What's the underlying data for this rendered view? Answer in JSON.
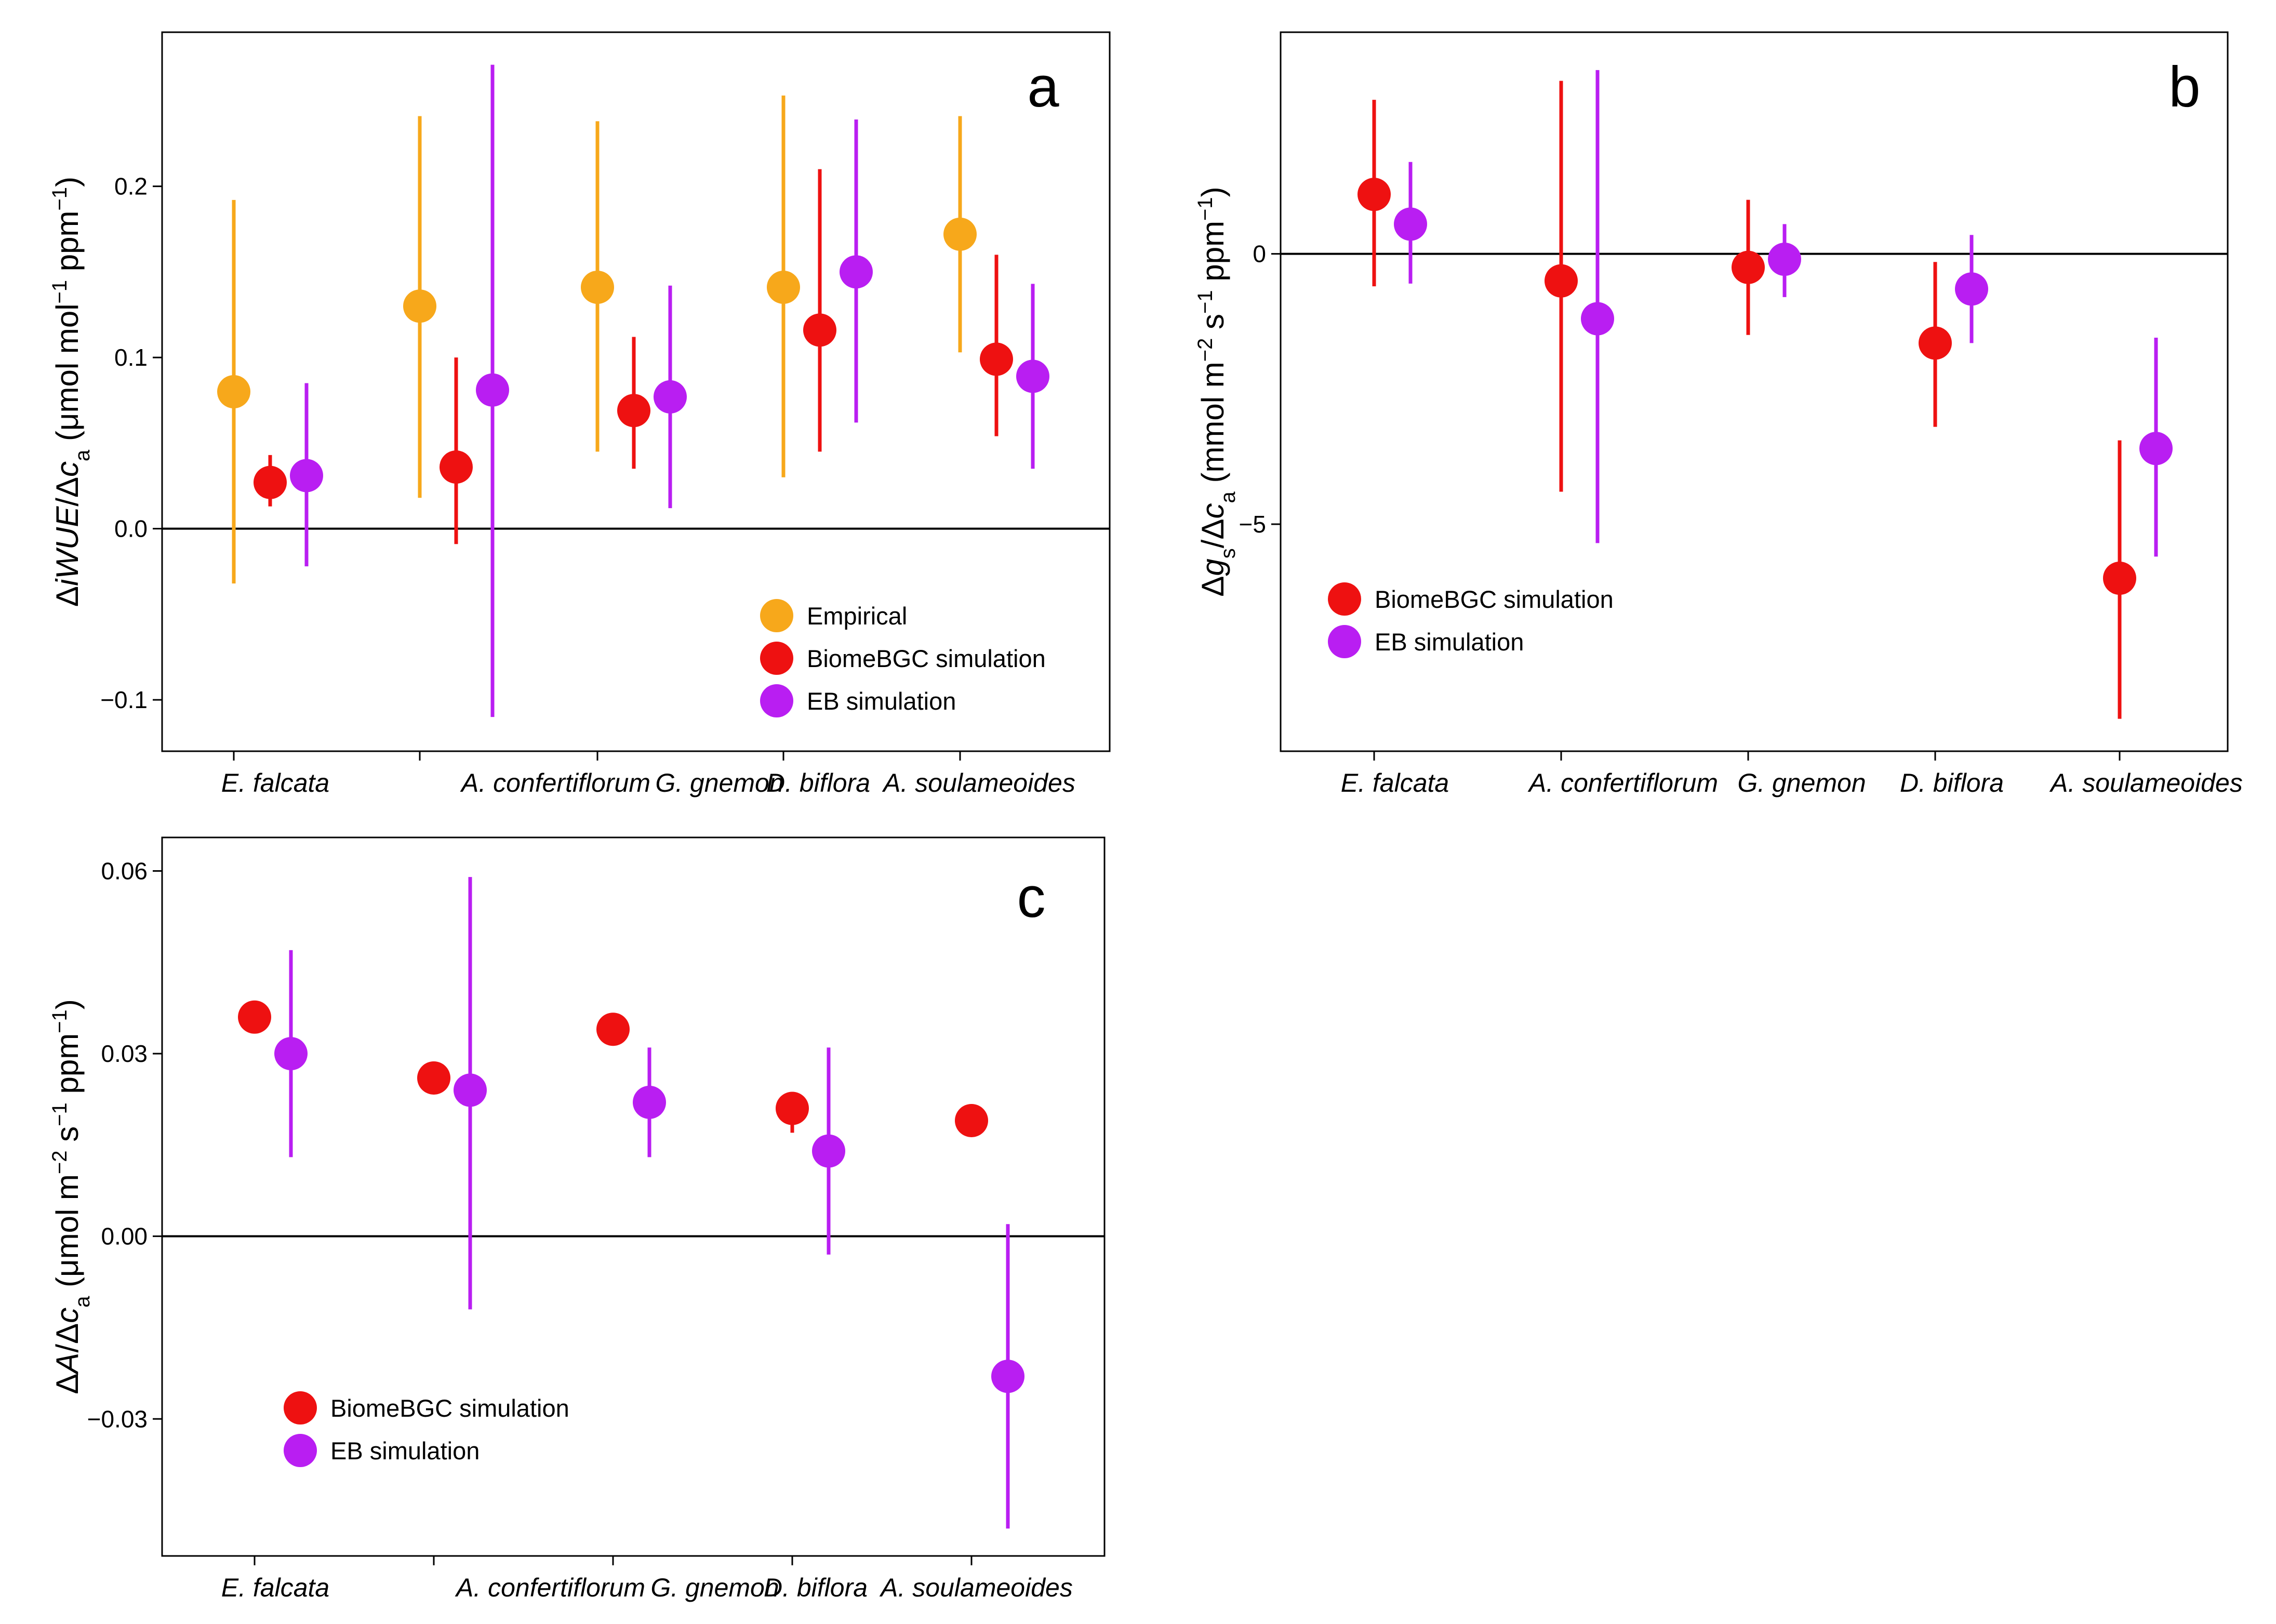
{
  "figure": {
    "panels": [
      {
        "id": "a",
        "letter": "a",
        "ylabel_parts": {
          "delta1": "Δ",
          "i": "i",
          "wue": "WUE",
          "slash": "/Δ",
          "c": "c",
          "sub_a": "a",
          "units_pre": "(μmol mol",
          "exp1": "−1",
          "units_mid": " ppm",
          "exp2": "−1",
          "close": ")"
        }
      },
      {
        "id": "b",
        "letter": "b",
        "ylabel_parts": {
          "delta1": "Δ",
          "g": "g",
          "sub_s": "s",
          "slash": "/Δ",
          "c": "c",
          "sub_a": "a",
          "units_pre": " (mmol m",
          "exp1": "−2",
          "units_s": " s",
          "exp2": "−1",
          "units_mid": " ppm",
          "exp3": "−1",
          "close": ")"
        }
      },
      {
        "id": "c",
        "letter": "c",
        "ylabel_parts": {
          "delta1": "Δ",
          "A": "A",
          "slash": "/Δ",
          "c": "c",
          "sub_a": "a",
          "units_pre": " (μmol m",
          "exp1": "−2",
          "units_s": " s",
          "exp2": "−1",
          "units_mid": " ppm",
          "exp3": "−1",
          "close": ")"
        }
      }
    ]
  },
  "chart_data": [
    {
      "panel": "a",
      "type": "scatter",
      "title": "",
      "xlabel": "",
      "ylabel": "ΔiWUE/Δca (μmol mol−1 ppm−1)",
      "ylim": [
        -0.13,
        0.29
      ],
      "yticks": [
        -0.1,
        0.0,
        0.1,
        0.2
      ],
      "ytick_labels": [
        "−0.1",
        "0.0",
        "0.1",
        "0.2"
      ],
      "hline": 0,
      "categories": [
        "E. falcata",
        "A. confertiflorum",
        "G. gnemon",
        "D. biflora",
        "A. soulameoides"
      ],
      "legend": "bottom-right",
      "series": [
        {
          "name": "Empirical",
          "color": "#F7A81B",
          "values": [
            0.08,
            0.13,
            0.141,
            0.141,
            0.172
          ],
          "lower": [
            -0.032,
            0.018,
            0.045,
            0.03,
            0.103
          ],
          "upper": [
            0.192,
            0.241,
            0.238,
            0.253,
            0.241
          ]
        },
        {
          "name": "BiomeBGC simulation",
          "color": "#EE1111",
          "values": [
            0.027,
            0.036,
            0.069,
            0.116,
            0.099
          ],
          "lower": [
            0.013,
            -0.009,
            0.035,
            0.045,
            0.054
          ],
          "upper": [
            0.043,
            0.1,
            0.112,
            0.21,
            0.16
          ]
        },
        {
          "name": "EB simulation",
          "color": "#B91EF2",
          "values": [
            0.031,
            0.081,
            0.077,
            0.15,
            0.089
          ],
          "lower": [
            -0.022,
            -0.11,
            0.012,
            0.062,
            0.035
          ],
          "upper": [
            0.085,
            0.271,
            0.142,
            0.239,
            0.143
          ]
        }
      ]
    },
    {
      "panel": "b",
      "type": "scatter",
      "title": "",
      "xlabel": "",
      "ylabel": "Δgs/Δca (mmol m−2 s−1 ppm−1)",
      "ylim": [
        -9.2,
        4.1
      ],
      "yticks": [
        -5,
        0
      ],
      "ytick_labels": [
        "−5",
        "0"
      ],
      "hline": 0,
      "categories": [
        "E. falcata",
        "A. confertiflorum",
        "G. gnemon",
        "D. biflora",
        "A. soulameoides"
      ],
      "legend": "bottom-left",
      "series": [
        {
          "name": "BiomeBGC simulation",
          "color": "#EE1111",
          "values": [
            1.1,
            -0.5,
            -0.25,
            -1.65,
            -6.0
          ],
          "lower": [
            -0.6,
            -4.4,
            -1.5,
            -3.2,
            -8.6
          ],
          "upper": [
            2.85,
            3.2,
            1.0,
            -0.15,
            -3.45
          ]
        },
        {
          "name": "EB simulation",
          "color": "#B91EF2",
          "values": [
            0.55,
            -1.2,
            -0.1,
            -0.65,
            -3.6
          ],
          "lower": [
            -0.55,
            -5.35,
            -0.8,
            -1.65,
            -5.6
          ],
          "upper": [
            1.7,
            3.4,
            0.55,
            0.35,
            -1.55
          ]
        }
      ]
    },
    {
      "panel": "c",
      "type": "scatter",
      "title": "",
      "xlabel": "",
      "ylabel": "ΔA/Δca (μmol m−2 s−1 ppm−1)",
      "ylim": [
        -0.0525,
        0.0655
      ],
      "yticks": [
        -0.03,
        0.0,
        0.03,
        0.06
      ],
      "ytick_labels": [
        "−0.03",
        "0.00",
        "0.03",
        "0.06"
      ],
      "hline": 0,
      "categories": [
        "E. falcata",
        "A. confertiflorum",
        "G. gnemon",
        "D. biflora",
        "A. soulameoides"
      ],
      "legend": "bottom-left",
      "series": [
        {
          "name": "BiomeBGC simulation",
          "color": "#EE1111",
          "values": [
            0.036,
            0.026,
            0.034,
            0.021,
            0.019
          ],
          "lower": [
            null,
            null,
            null,
            0.017,
            null
          ],
          "upper": [
            null,
            null,
            null,
            0.021,
            null
          ]
        },
        {
          "name": "EB simulation",
          "color": "#B91EF2",
          "values": [
            0.03,
            0.024,
            0.022,
            0.014,
            -0.023
          ],
          "lower": [
            0.013,
            -0.012,
            0.013,
            -0.003,
            -0.048
          ],
          "upper": [
            0.047,
            0.059,
            0.031,
            0.031,
            0.002
          ]
        }
      ]
    }
  ]
}
